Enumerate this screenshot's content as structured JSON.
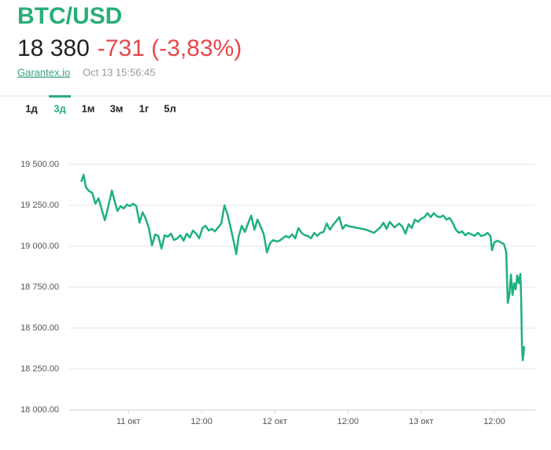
{
  "header": {
    "pair": "BTC/USD",
    "price": "18 380",
    "change": "-731 (-3,83%)",
    "source": "Garantex.io",
    "timestamp": "Oct 13 15:56:45"
  },
  "tabs": {
    "items": [
      "1д",
      "3д",
      "1м",
      "3м",
      "1г",
      "5л"
    ],
    "active": 1
  },
  "chart_data": {
    "type": "line",
    "color": "#1fb07f",
    "x": [
      -7.74,
      -7.35,
      -6.97,
      -6.45,
      -5.94,
      -5.42,
      -4.9,
      -4.39,
      -3.87,
      -3.35,
      -2.71,
      -2.32,
      -1.81,
      -1.29,
      -0.77,
      -0.26,
      0.26,
      0.77,
      1.29,
      1.81,
      2.32,
      2.84,
      3.35,
      3.87,
      4.39,
      4.9,
      5.42,
      5.94,
      6.45,
      6.97,
      7.48,
      8.0,
      8.52,
      9.03,
      9.55,
      10.06,
      10.58,
      11.1,
      11.61,
      12.13,
      12.65,
      13.16,
      13.68,
      14.19,
      14.71,
      15.23,
      15.74,
      16.26,
      16.77,
      17.29,
      17.68,
      18.06,
      18.58,
      19.1,
      19.61,
      20.13,
      20.65,
      21.16,
      21.68,
      22.19,
      22.71,
      23.23,
      23.74,
      24.26,
      24.77,
      25.29,
      25.81,
      26.32,
      26.84,
      27.35,
      27.87,
      28.39,
      28.9,
      29.42,
      29.94,
      30.45,
      30.97,
      31.48,
      32.0,
      32.52,
      33.03,
      33.55,
      34.06,
      34.58,
      35.1,
      35.61,
      36.39,
      37.68,
      38.97,
      40.26,
      41.29,
      41.81,
      42.32,
      42.84,
      43.61,
      44.39,
      44.9,
      45.42,
      45.94,
      46.45,
      46.97,
      47.48,
      48.0,
      48.52,
      49.03,
      49.55,
      50.06,
      50.58,
      51.1,
      51.61,
      52.13,
      52.65,
      53.16,
      53.68,
      54.19,
      54.71,
      55.23,
      55.74,
      56.26,
      56.77,
      57.29,
      57.81,
      58.32,
      58.84,
      59.35,
      59.61,
      60.0,
      60.52,
      61.03,
      61.55,
      61.94,
      62.19,
      62.45,
      62.71,
      62.97,
      63.23,
      63.48,
      63.74,
      64.0,
      64.26,
      64.39,
      64.52,
      64.65,
      64.9
    ],
    "values": [
      19394,
      19437,
      19361,
      19337,
      19327,
      19260,
      19293,
      19226,
      19159,
      19236,
      19341,
      19284,
      19216,
      19245,
      19231,
      19255,
      19245,
      19260,
      19245,
      19144,
      19207,
      19168,
      19111,
      19005,
      19072,
      19063,
      18986,
      19067,
      19058,
      19077,
      19038,
      19048,
      19067,
      19034,
      19077,
      19053,
      19096,
      19077,
      19048,
      19111,
      19125,
      19096,
      19106,
      19091,
      19115,
      19139,
      19250,
      19192,
      19111,
      19024,
      18952,
      19058,
      19125,
      19087,
      19139,
      19188,
      19101,
      19163,
      19120,
      19072,
      18962,
      19019,
      19038,
      19029,
      19034,
      19048,
      19063,
      19053,
      19072,
      19048,
      19111,
      19082,
      19067,
      19063,
      19048,
      19082,
      19063,
      19082,
      19087,
      19139,
      19101,
      19130,
      19154,
      19178,
      19106,
      19130,
      19120,
      19111,
      19101,
      19082,
      19115,
      19144,
      19106,
      19149,
      19115,
      19139,
      19120,
      19077,
      19135,
      19111,
      19163,
      19149,
      19168,
      19178,
      19202,
      19178,
      19202,
      19183,
      19178,
      19188,
      19163,
      19173,
      19144,
      19101,
      19082,
      19091,
      19067,
      19082,
      19072,
      19063,
      19082,
      19063,
      19067,
      19082,
      19063,
      18976,
      19024,
      19034,
      19024,
      19014,
      18966,
      18654,
      18702,
      18827,
      18702,
      18774,
      18736,
      18822,
      18774,
      18831,
      18678,
      18389,
      18303,
      18389
    ],
    "xlim": [
      -9.7,
      66.7
    ],
    "xticks": [
      {
        "value": 0,
        "label": "11 окт"
      },
      {
        "value": 12,
        "label": "12:00"
      },
      {
        "value": 24,
        "label": "12 окт"
      },
      {
        "value": 36,
        "label": "12:00"
      },
      {
        "value": 48,
        "label": "13 окт"
      },
      {
        "value": 60,
        "label": "12:00"
      }
    ],
    "ylim": [
      18000,
      19500
    ],
    "yticks": [
      {
        "value": 18000,
        "label": "18 000.00"
      },
      {
        "value": 18250,
        "label": "18 250.00"
      },
      {
        "value": 18500,
        "label": "18 500.00"
      },
      {
        "value": 18750,
        "label": "18 750.00"
      },
      {
        "value": 19000,
        "label": "19 000.00"
      },
      {
        "value": 19250,
        "label": "19 250.00"
      },
      {
        "value": 19500,
        "label": "19 500.00"
      }
    ],
    "grid": true
  }
}
